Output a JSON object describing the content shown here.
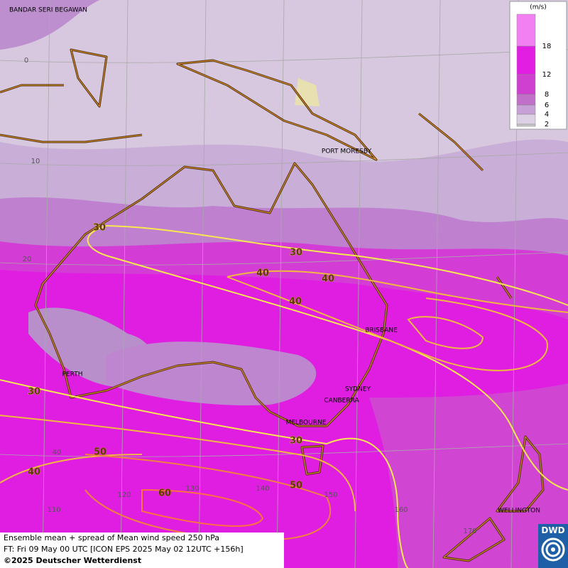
{
  "map": {
    "places": [
      "BANDAR SERI BEGAWAN",
      "PORT MORESBY",
      "BRISBANE",
      "PERTH",
      "SYDNEY",
      "CANBERRA",
      "MELBOURNE",
      "WELLINGTON"
    ],
    "grid_labels": [
      "0",
      "10",
      "20",
      "40",
      "110",
      "120",
      "130",
      "140",
      "150",
      "160",
      "170"
    ],
    "contour_labels": [
      "30",
      "30",
      "30",
      "30",
      "40",
      "40",
      "40",
      "40",
      "50",
      "50",
      "60"
    ]
  },
  "legend": {
    "unit": "(m/s)",
    "levels": [
      "18",
      "12",
      "8",
      "6",
      "4",
      "2"
    ]
  },
  "footer": {
    "line1": "Ensemble mean + spread of Mean wind speed 250 hPa",
    "line2": "FT: Fri 09 May 00 UTC [ICON EPS 2025 May 02 12UTC +156h]",
    "line3": "©2025 Deutscher Wetterdienst"
  },
  "logo": "DWD"
}
